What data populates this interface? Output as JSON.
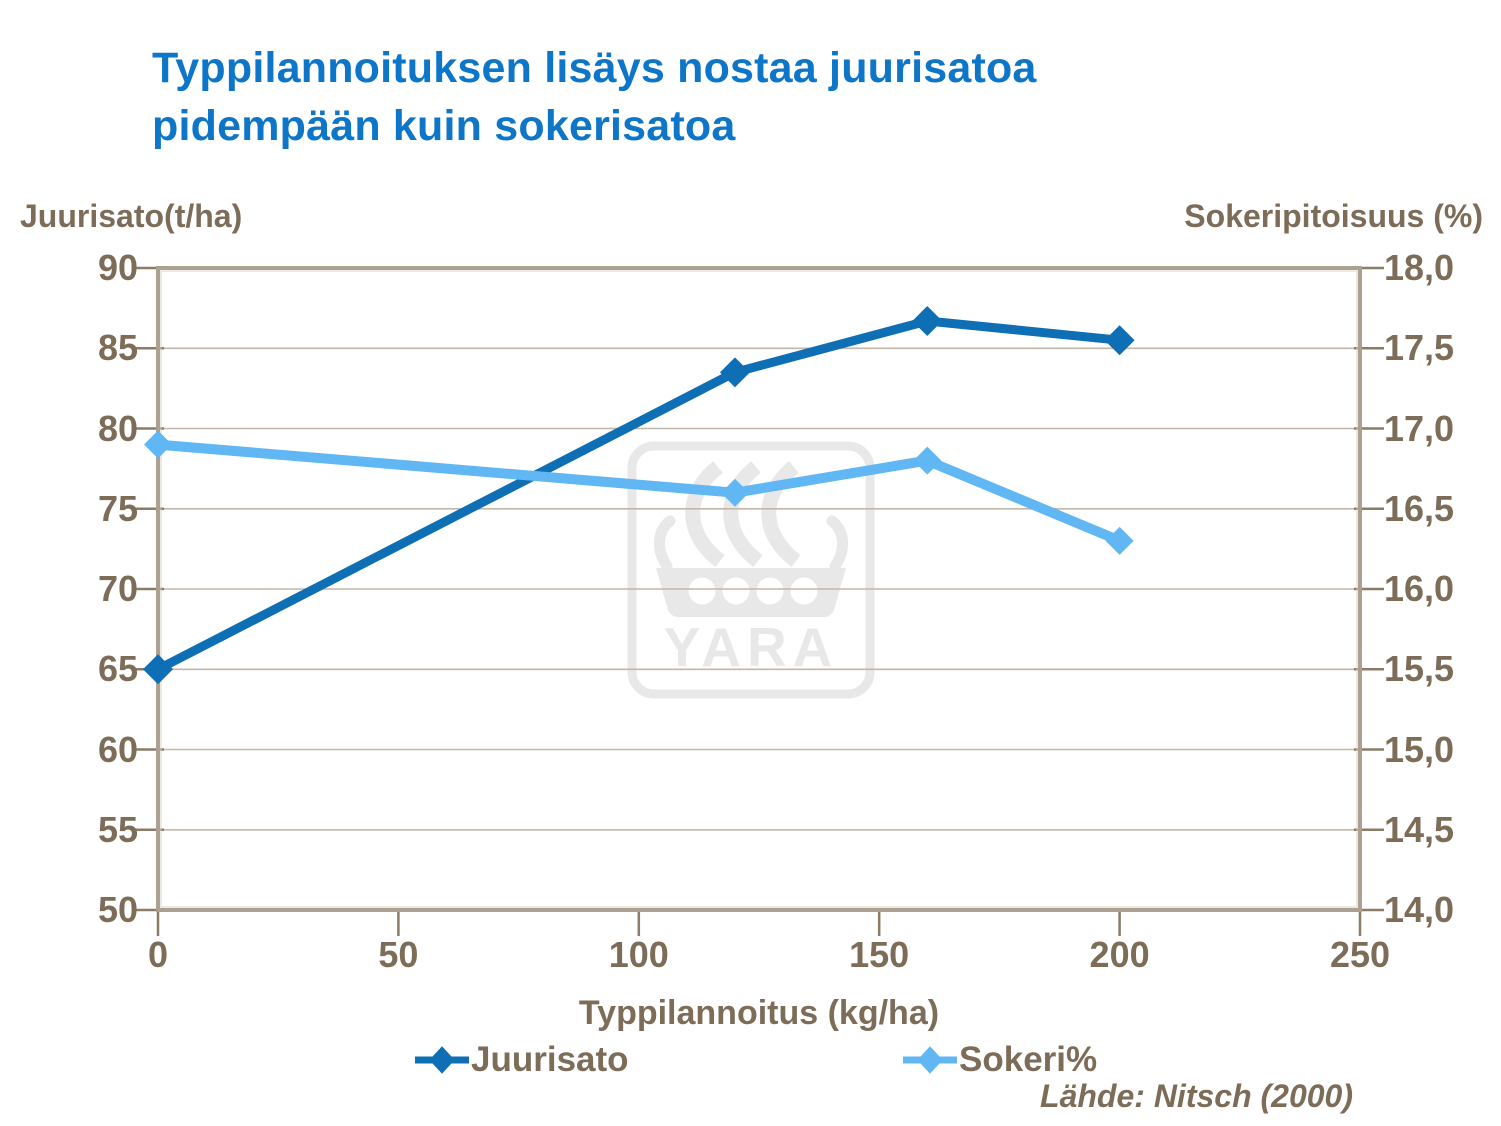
{
  "title": "Typpilannoituksen lisäys nostaa juurisatoa\npidempään kuin sokerisatoa",
  "source": "Lähde: Nitsch (2000)",
  "watermark_text": "YARA",
  "colors": {
    "title": "#0d76c8",
    "axis_text": "#7c6c58",
    "tick": "#8b7b67",
    "grid": "#c2b7a8",
    "frame": "#aca090",
    "juurisato": "#0e6fb5",
    "sokeri": "#60b7f4",
    "watermark": "#e8e8e8"
  },
  "chart_data": {
    "type": "line",
    "x": [
      0,
      120,
      160,
      200
    ],
    "series": [
      {
        "name": "Juurisato",
        "axis": "left",
        "color_key": "juurisato",
        "values": [
          65,
          83.5,
          86.7,
          85.5
        ]
      },
      {
        "name": "Sokeri%",
        "axis": "right",
        "color_key": "sokeri",
        "values": [
          16.9,
          16.6,
          16.8,
          16.3
        ]
      }
    ],
    "x_axis": {
      "label": "Typpilannoitus (kg/ha)",
      "min": 0,
      "max": 250,
      "tick_values": [
        0,
        50,
        100,
        150,
        200,
        250
      ],
      "tick_labels": [
        "0",
        "50",
        "100",
        "150",
        "200",
        "250"
      ]
    },
    "left_axis": {
      "label": "Juurisato(t/ha)",
      "min": 50,
      "max": 90,
      "tick_values": [
        90,
        85,
        80,
        75,
        70,
        65,
        60,
        55,
        50
      ],
      "tick_labels": [
        "90",
        "85",
        "80",
        "75",
        "70",
        "65",
        "60",
        "55",
        "50"
      ]
    },
    "right_axis": {
      "label": "Sokeripitoisuus (%)",
      "min": 14,
      "max": 18,
      "tick_values": [
        18,
        17.5,
        17,
        16.5,
        16,
        15.5,
        15,
        14.5,
        14
      ],
      "tick_labels": [
        "18,0",
        "17,5",
        "17,0",
        "16,5",
        "16,0",
        "15,5",
        "15,0",
        "14,5",
        "14,0"
      ]
    },
    "legend": [
      {
        "label": "Juurisato"
      },
      {
        "label": "Sokeri%"
      }
    ],
    "grid": "horizontal",
    "legend_position": "bottom"
  }
}
